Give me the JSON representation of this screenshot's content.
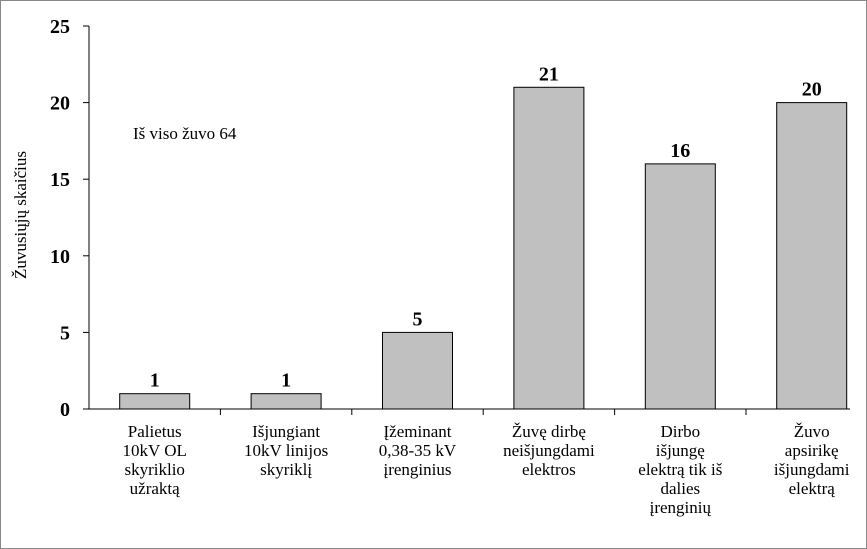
{
  "chart_data": {
    "type": "bar",
    "ylabel": "Žuvusiųjų skaičius",
    "annotation": "Iš viso žuvo 64",
    "categories": [
      [
        "Palietus",
        "10kV OL",
        "skyriklio",
        "užraktą"
      ],
      [
        "Išjungiant",
        "10kV linijos",
        "skyriklį"
      ],
      [
        "Įžeminant",
        "0,38-35 kV",
        "įrenginius"
      ],
      [
        "Žuvę dirbę",
        "neišjungdami",
        "elektros"
      ],
      [
        "Dirbo",
        "išjungę",
        "elektrą tik iš",
        "dalies",
        "įrenginių"
      ],
      [
        "Žuvo",
        "apsirikę",
        "išjungdami",
        "elektrą"
      ]
    ],
    "values": [
      1,
      1,
      5,
      21,
      16,
      20
    ],
    "color": "#c0c0c0",
    "ylim": [
      0,
      25
    ],
    "yticks": [
      0,
      5,
      10,
      15,
      20,
      25
    ],
    "grid": false
  }
}
